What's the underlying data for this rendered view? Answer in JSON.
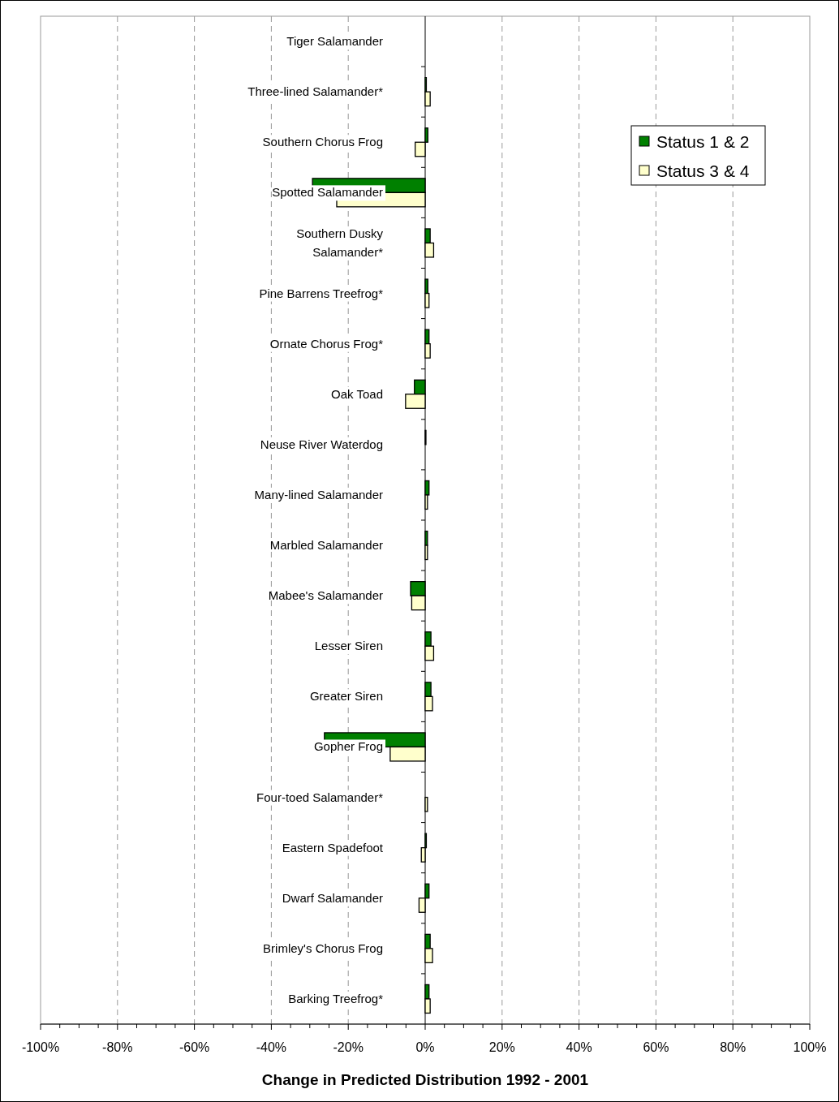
{
  "chart_data": {
    "type": "bar",
    "orientation": "horizontal",
    "xlabel": "Change in Predicted Distribution 1992 - 2001",
    "categories": [
      "Tiger Salamander",
      "Three-lined Salamander*",
      "Southern Chorus Frog",
      "Spotted Salamander",
      "Southern Dusky Salamander*",
      "Pine Barrens Treefrog*",
      "Ornate Chorus Frog*",
      "Oak Toad",
      "Neuse River Waterdog",
      "Many-lined Salamander",
      "Marbled Salamander",
      "Mabee's Salamander",
      "Lesser Siren",
      "Greater Siren",
      "Gopher Frog",
      "Four-toed Salamander*",
      "Eastern Spadefoot",
      "Dwarf Salamander",
      "Brimley's Chorus Frog",
      "Barking Treefrog*"
    ],
    "series": [
      {
        "name": "Status 1 & 2",
        "color": "#008000",
        "values": [
          null,
          0.3,
          0.7,
          -29.3,
          1.3,
          0.7,
          1.0,
          -2.8,
          0.2,
          1.0,
          0.6,
          -3.8,
          1.5,
          1.5,
          -26.2,
          null,
          0.3,
          1.0,
          1.3,
          1.0
        ]
      },
      {
        "name": "Status 3 & 4",
        "color": "#ffffcc",
        "values": [
          null,
          1.3,
          -2.6,
          -23,
          2.2,
          1.0,
          1.3,
          -5.1,
          null,
          0.6,
          0.6,
          -3.5,
          2.2,
          1.9,
          -9.1,
          0.6,
          -1.0,
          -1.6,
          1.9,
          1.3
        ]
      }
    ],
    "xlim": [
      -100,
      100
    ],
    "xticks": [
      {
        "value": -100,
        "label": "-100%"
      },
      {
        "value": -95,
        "label": null
      },
      {
        "value": -90,
        "label": null
      },
      {
        "value": -85,
        "label": null
      },
      {
        "value": -80,
        "label": "-80%"
      },
      {
        "value": -75,
        "label": null
      },
      {
        "value": -70,
        "label": null
      },
      {
        "value": -65,
        "label": null
      },
      {
        "value": -60,
        "label": "-60%"
      },
      {
        "value": -55,
        "label": null
      },
      {
        "value": -50,
        "label": null
      },
      {
        "value": -45,
        "label": null
      },
      {
        "value": -40,
        "label": "-40%"
      },
      {
        "value": -35,
        "label": null
      },
      {
        "value": -30,
        "label": null
      },
      {
        "value": -25,
        "label": null
      },
      {
        "value": -20,
        "label": "-20%"
      },
      {
        "value": -15,
        "label": null
      },
      {
        "value": -10,
        "label": null
      },
      {
        "value": -5,
        "label": null
      },
      {
        "value": 0,
        "label": "0%"
      },
      {
        "value": 5,
        "label": null
      },
      {
        "value": 10,
        "label": null
      },
      {
        "value": 15,
        "label": null
      },
      {
        "value": 20,
        "label": "20%"
      },
      {
        "value": 25,
        "label": null
      },
      {
        "value": 30,
        "label": null
      },
      {
        "value": 35,
        "label": null
      },
      {
        "value": 40,
        "label": "40%"
      },
      {
        "value": 45,
        "label": null
      },
      {
        "value": 50,
        "label": null
      },
      {
        "value": 55,
        "label": null
      },
      {
        "value": 60,
        "label": "60%"
      },
      {
        "value": 65,
        "label": null
      },
      {
        "value": 70,
        "label": null
      },
      {
        "value": 75,
        "label": null
      },
      {
        "value": 80,
        "label": "80%"
      },
      {
        "value": 85,
        "label": null
      },
      {
        "value": 90,
        "label": null
      },
      {
        "value": 95,
        "label": null
      },
      {
        "value": 100,
        "label": "100%"
      }
    ],
    "grid": "x",
    "legend": "top right"
  }
}
